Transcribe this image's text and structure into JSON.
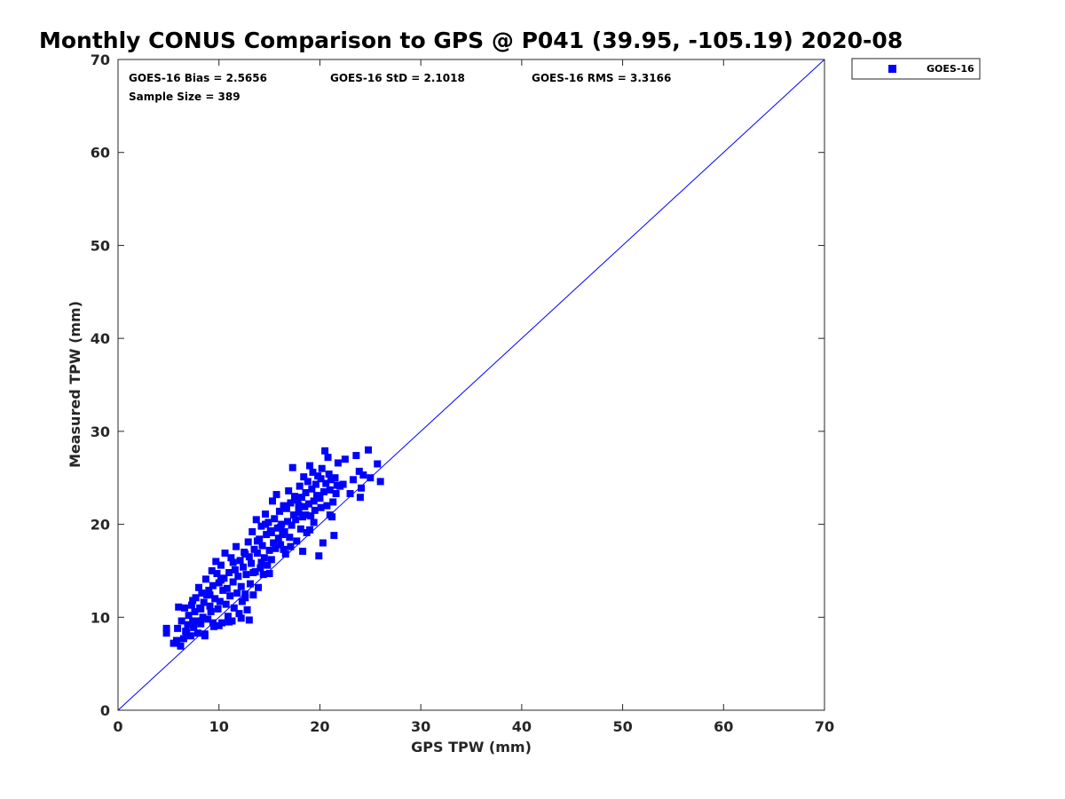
{
  "chart_data": {
    "type": "scatter",
    "title": "Monthly CONUS Comparison to GPS @ P041 (39.95, -105.19) 2020-08",
    "xlabel": "GPS TPW (mm)",
    "ylabel": "Measured TPW (mm)",
    "xlim": [
      0,
      70
    ],
    "ylim": [
      0,
      70
    ],
    "x_ticks": [
      "0",
      "10",
      "20",
      "30",
      "40",
      "50",
      "60",
      "70"
    ],
    "y_ticks": [
      "0",
      "10",
      "20",
      "30",
      "40",
      "50",
      "60",
      "70"
    ],
    "grid": false,
    "legend_position": "outside top-right",
    "reference_line": {
      "from": [
        0,
        0
      ],
      "to": [
        70,
        70
      ],
      "color": "#0000ff"
    },
    "stats": {
      "bias": "GOES-16 Bias = 2.5656",
      "std": "GOES-16 StD = 2.1018",
      "rms": "GOES-16 RMS = 3.3166",
      "sample_size": "Sample Size = 389"
    },
    "series": [
      {
        "name": "GOES-16",
        "color": "#0000ff",
        "marker": "square",
        "points": [
          [
            4.8,
            8.3
          ],
          [
            4.8,
            8.8
          ],
          [
            5.5,
            7.2
          ],
          [
            5.8,
            7.5
          ],
          [
            5.9,
            8.8
          ],
          [
            6.0,
            11.1
          ],
          [
            6.2,
            6.9
          ],
          [
            6.3,
            9.6
          ],
          [
            6.5,
            7.7
          ],
          [
            6.6,
            11.0
          ],
          [
            6.8,
            8.4
          ],
          [
            6.9,
            9.2
          ],
          [
            7.0,
            10.2
          ],
          [
            7.2,
            8.0
          ],
          [
            7.3,
            11.3
          ],
          [
            7.4,
            11.8
          ],
          [
            7.5,
            8.9
          ],
          [
            7.6,
            10.6
          ],
          [
            7.7,
            12.1
          ],
          [
            7.8,
            9.6
          ],
          [
            7.9,
            8.3
          ],
          [
            8.0,
            13.2
          ],
          [
            8.1,
            11.0
          ],
          [
            8.2,
            9.3
          ],
          [
            8.3,
            12.6
          ],
          [
            8.4,
            10.0
          ],
          [
            8.5,
            11.6
          ],
          [
            8.6,
            8.0
          ],
          [
            8.7,
            14.1
          ],
          [
            8.8,
            12.4
          ],
          [
            8.9,
            9.8
          ],
          [
            9.0,
            12.9
          ],
          [
            9.1,
            11.2
          ],
          [
            9.2,
            10.6
          ],
          [
            9.3,
            15.0
          ],
          [
            9.4,
            13.4
          ],
          [
            9.5,
            9.0
          ],
          [
            9.6,
            12.0
          ],
          [
            9.7,
            16.0
          ],
          [
            9.8,
            14.7
          ],
          [
            9.9,
            10.9
          ],
          [
            10.0,
            13.7
          ],
          [
            10.1,
            11.7
          ],
          [
            10.2,
            15.6
          ],
          [
            10.3,
            9.4
          ],
          [
            10.4,
            12.9
          ],
          [
            10.5,
            14.2
          ],
          [
            10.6,
            16.9
          ],
          [
            10.7,
            11.4
          ],
          [
            10.8,
            13.1
          ],
          [
            10.9,
            10.1
          ],
          [
            11.0,
            14.8
          ],
          [
            11.1,
            12.3
          ],
          [
            11.2,
            16.4
          ],
          [
            11.3,
            9.6
          ],
          [
            11.4,
            13.8
          ],
          [
            11.5,
            11.0
          ],
          [
            11.6,
            15.1
          ],
          [
            11.7,
            17.6
          ],
          [
            11.8,
            12.6
          ],
          [
            11.9,
            14.4
          ],
          [
            12.0,
            10.4
          ],
          [
            12.1,
            16.1
          ],
          [
            12.2,
            13.3
          ],
          [
            12.3,
            11.7
          ],
          [
            12.4,
            15.4
          ],
          [
            12.5,
            17.0
          ],
          [
            12.6,
            12.1
          ],
          [
            12.7,
            14.6
          ],
          [
            12.8,
            10.8
          ],
          [
            12.9,
            18.1
          ],
          [
            13.0,
            16.5
          ],
          [
            13.1,
            13.6
          ],
          [
            13.2,
            15.8
          ],
          [
            13.3,
            19.2
          ],
          [
            13.4,
            12.4
          ],
          [
            13.5,
            17.3
          ],
          [
            13.6,
            14.9
          ],
          [
            13.7,
            20.5
          ],
          [
            13.8,
            16.9
          ],
          [
            13.9,
            13.2
          ],
          [
            14.0,
            18.4
          ],
          [
            14.1,
            15.3
          ],
          [
            14.2,
            19.8
          ],
          [
            14.3,
            17.7
          ],
          [
            14.4,
            14.6
          ],
          [
            14.5,
            16.4
          ],
          [
            14.6,
            21.1
          ],
          [
            14.7,
            18.9
          ],
          [
            14.8,
            15.6
          ],
          [
            14.9,
            20.2
          ],
          [
            15.0,
            17.2
          ],
          [
            15.1,
            19.3
          ],
          [
            15.2,
            16.2
          ],
          [
            15.3,
            22.5
          ],
          [
            15.4,
            18.0
          ],
          [
            15.5,
            20.6
          ],
          [
            15.6,
            17.4
          ],
          [
            15.7,
            23.2
          ],
          [
            15.8,
            19.6
          ],
          [
            15.9,
            18.5
          ],
          [
            16.0,
            21.4
          ],
          [
            16.1,
            17.8
          ],
          [
            16.2,
            20.0
          ],
          [
            16.3,
            18.9
          ],
          [
            16.4,
            22.0
          ],
          [
            16.5,
            19.2
          ],
          [
            16.6,
            16.8
          ],
          [
            16.7,
            21.7
          ],
          [
            16.8,
            20.3
          ],
          [
            16.9,
            23.6
          ],
          [
            17.0,
            18.6
          ],
          [
            17.1,
            22.3
          ],
          [
            17.2,
            19.9
          ],
          [
            17.3,
            26.1
          ],
          [
            17.4,
            21.0
          ],
          [
            17.5,
            23.0
          ],
          [
            17.6,
            20.5
          ],
          [
            17.7,
            18.2
          ],
          [
            17.8,
            22.6
          ],
          [
            17.9,
            21.3
          ],
          [
            18.0,
            24.1
          ],
          [
            18.1,
            19.5
          ],
          [
            18.2,
            22.9
          ],
          [
            18.3,
            20.8
          ],
          [
            18.4,
            25.1
          ],
          [
            18.5,
            21.9
          ],
          [
            18.6,
            23.4
          ],
          [
            18.7,
            19.1
          ],
          [
            18.8,
            24.6
          ],
          [
            18.9,
            22.2
          ],
          [
            19.0,
            26.3
          ],
          [
            19.1,
            20.9
          ],
          [
            19.2,
            23.8
          ],
          [
            19.3,
            25.6
          ],
          [
            19.4,
            22.5
          ],
          [
            19.5,
            21.5
          ],
          [
            19.6,
            24.3
          ],
          [
            19.7,
            23.1
          ],
          [
            19.8,
            25.2
          ],
          [
            19.9,
            16.6
          ],
          [
            20.0,
            22.8
          ],
          [
            20.1,
            24.9
          ],
          [
            20.2,
            26.0
          ],
          [
            20.3,
            18.0
          ],
          [
            20.4,
            23.5
          ],
          [
            20.5,
            27.9
          ],
          [
            20.6,
            24.4
          ],
          [
            20.7,
            22.0
          ],
          [
            20.8,
            27.2
          ],
          [
            20.9,
            25.4
          ],
          [
            21.0,
            23.7
          ],
          [
            21.1,
            24.8
          ],
          [
            21.2,
            20.8
          ],
          [
            21.3,
            22.4
          ],
          [
            21.4,
            18.8
          ],
          [
            21.5,
            25.0
          ],
          [
            21.6,
            23.3
          ],
          [
            21.7,
            24.2
          ],
          [
            21.8,
            26.6
          ],
          [
            22.0,
            24.1
          ],
          [
            22.3,
            24.3
          ],
          [
            22.5,
            27.0
          ],
          [
            23.0,
            23.3
          ],
          [
            23.3,
            24.8
          ],
          [
            23.6,
            27.4
          ],
          [
            23.9,
            25.7
          ],
          [
            24.0,
            22.9
          ],
          [
            24.1,
            23.9
          ],
          [
            24.3,
            25.3
          ],
          [
            24.8,
            28.0
          ],
          [
            25.0,
            25.0
          ],
          [
            25.7,
            26.5
          ],
          [
            26.0,
            24.6
          ],
          [
            15.2,
            19.1
          ],
          [
            16.1,
            19.7
          ],
          [
            13.8,
            18.2
          ],
          [
            12.6,
            16.8
          ],
          [
            11.4,
            15.9
          ],
          [
            10.2,
            14.0
          ],
          [
            9.1,
            12.4
          ],
          [
            8.2,
            10.9
          ],
          [
            7.4,
            9.6
          ],
          [
            6.7,
            8.5
          ],
          [
            14.6,
            20.0
          ],
          [
            17.9,
            22.0
          ],
          [
            18.6,
            21.0
          ],
          [
            19.4,
            20.2
          ],
          [
            20.1,
            21.8
          ],
          [
            21.0,
            21.0
          ],
          [
            13.0,
            9.7
          ],
          [
            12.2,
            9.9
          ],
          [
            11.0,
            9.5
          ],
          [
            10.0,
            9.1
          ],
          [
            9.4,
            9.4
          ],
          [
            8.6,
            8.2
          ],
          [
            12.6,
            12.5
          ],
          [
            13.4,
            14.8
          ],
          [
            14.2,
            15.9
          ],
          [
            15.0,
            14.7
          ],
          [
            16.4,
            17.3
          ],
          [
            17.1,
            17.6
          ],
          [
            18.3,
            17.1
          ],
          [
            19.0,
            19.4
          ]
        ]
      }
    ]
  }
}
